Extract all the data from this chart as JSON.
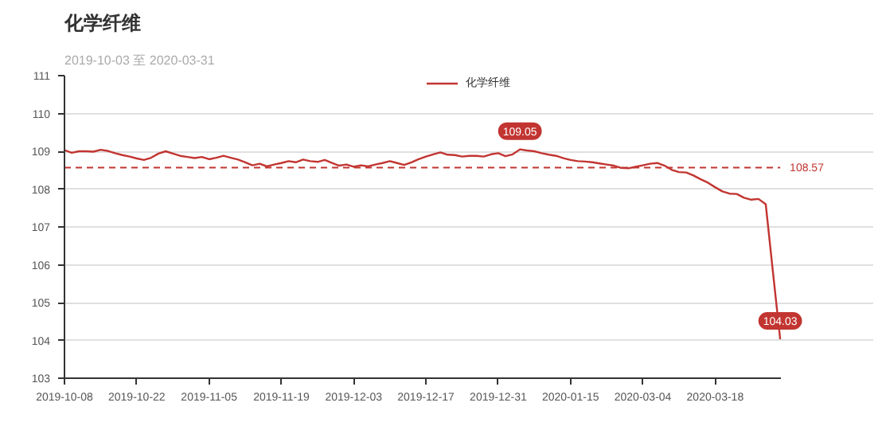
{
  "chart_data": {
    "type": "line",
    "title": "化学纤维",
    "subtitle": "2019-10-03 至 2020-03-31",
    "categories": [
      "2019-10-08",
      null,
      null,
      null,
      null,
      null,
      null,
      null,
      null,
      null,
      "2019-10-22",
      null,
      null,
      null,
      null,
      null,
      null,
      null,
      null,
      null,
      "2019-11-05",
      null,
      null,
      null,
      null,
      null,
      null,
      null,
      null,
      null,
      "2019-11-19",
      null,
      null,
      null,
      null,
      null,
      null,
      null,
      null,
      null,
      "2019-12-03",
      null,
      null,
      null,
      null,
      null,
      null,
      null,
      null,
      null,
      "2019-12-17",
      null,
      null,
      null,
      null,
      null,
      null,
      null,
      null,
      null,
      "2019-12-31",
      null,
      null,
      null,
      null,
      null,
      null,
      null,
      null,
      null,
      "2020-01-15",
      null,
      null,
      null,
      null,
      null,
      null,
      null,
      null,
      null,
      "2020-03-04",
      null,
      null,
      null,
      null,
      null,
      null,
      null,
      null,
      null,
      "2020-03-18",
      null,
      null,
      null,
      null,
      null,
      null,
      null,
      null,
      null
    ],
    "series": [
      {
        "name": "化学纤维",
        "color": "#c23531",
        "values": [
          109.03,
          108.96,
          109.0,
          109.0,
          108.99,
          109.04,
          109.01,
          108.95,
          108.9,
          108.86,
          108.81,
          108.77,
          108.83,
          108.94,
          109.0,
          108.94,
          108.88,
          108.85,
          108.82,
          108.85,
          108.79,
          108.83,
          108.88,
          108.83,
          108.78,
          108.71,
          108.63,
          108.67,
          108.6,
          108.65,
          108.69,
          108.74,
          108.71,
          108.78,
          108.74,
          108.72,
          108.77,
          108.69,
          108.62,
          108.65,
          108.59,
          108.63,
          108.6,
          108.65,
          108.69,
          108.74,
          108.69,
          108.64,
          108.71,
          108.79,
          108.86,
          108.92,
          108.97,
          108.91,
          108.9,
          108.86,
          108.88,
          108.88,
          108.86,
          108.92,
          108.95,
          108.87,
          108.92,
          109.05,
          109.02,
          109.0,
          108.95,
          108.91,
          108.88,
          108.82,
          108.77,
          108.74,
          108.73,
          108.71,
          108.68,
          108.65,
          108.62,
          108.56,
          108.55,
          108.59,
          108.63,
          108.67,
          108.69,
          108.62,
          108.51,
          108.45,
          108.44,
          108.36,
          108.26,
          108.17,
          108.05,
          107.94,
          107.88,
          107.87,
          107.77,
          107.72,
          107.74,
          107.6,
          105.8,
          104.03
        ]
      }
    ],
    "ylim": [
      103,
      111
    ],
    "yticks": [
      103,
      104,
      105,
      106,
      107,
      108,
      109,
      110,
      111
    ],
    "grid": "y",
    "legend": "top",
    "line_style": "solid",
    "ref_lines": [
      {
        "axis": "y",
        "value": 108.57,
        "label": "108.57",
        "color": "#c23531",
        "line_style": "dashed"
      }
    ],
    "annotations": [
      {
        "text": "109.05",
        "y": 109.05
      },
      {
        "text": "104.03",
        "y": 104.03
      }
    ]
  }
}
